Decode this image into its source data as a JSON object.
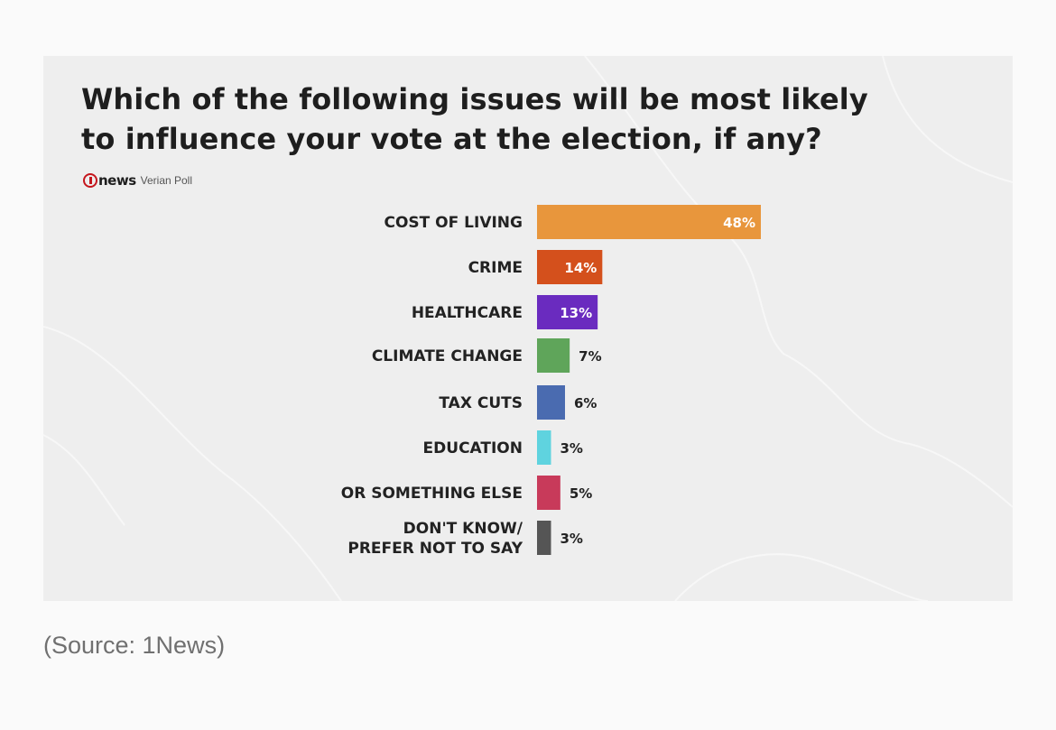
{
  "chart_data": {
    "type": "bar",
    "orientation": "horizontal",
    "title_lines": [
      "Which of the following issues will be most likely",
      "to influence your vote at the election, if any?"
    ],
    "brand": {
      "name": "news",
      "poll": "Verian Poll"
    },
    "categories": [
      [
        "COST OF LIVING"
      ],
      [
        "CRIME"
      ],
      [
        "HEALTHCARE"
      ],
      [
        "CLIMATE CHANGE"
      ],
      [
        "TAX CUTS"
      ],
      [
        "EDUCATION"
      ],
      [
        "OR SOMETHING ELSE"
      ],
      [
        "DON'T KNOW/",
        "PREFER NOT TO SAY"
      ]
    ],
    "values": [
      48,
      14,
      13,
      7,
      6,
      3,
      5,
      3
    ],
    "value_labels": [
      "48%",
      "14%",
      "13%",
      "7%",
      "6%",
      "3%",
      "5%",
      "3%"
    ],
    "label_inside": [
      true,
      true,
      true,
      false,
      false,
      false,
      false,
      false
    ],
    "colors": [
      "#e8963c",
      "#d4501c",
      "#6a2bbf",
      "#5fa55a",
      "#4a6bb0",
      "#5fd3df",
      "#c83a5a",
      "#555555"
    ],
    "xlim": [
      0,
      48
    ],
    "grid": false,
    "legend": "none"
  },
  "caption": "(Source: 1News)"
}
